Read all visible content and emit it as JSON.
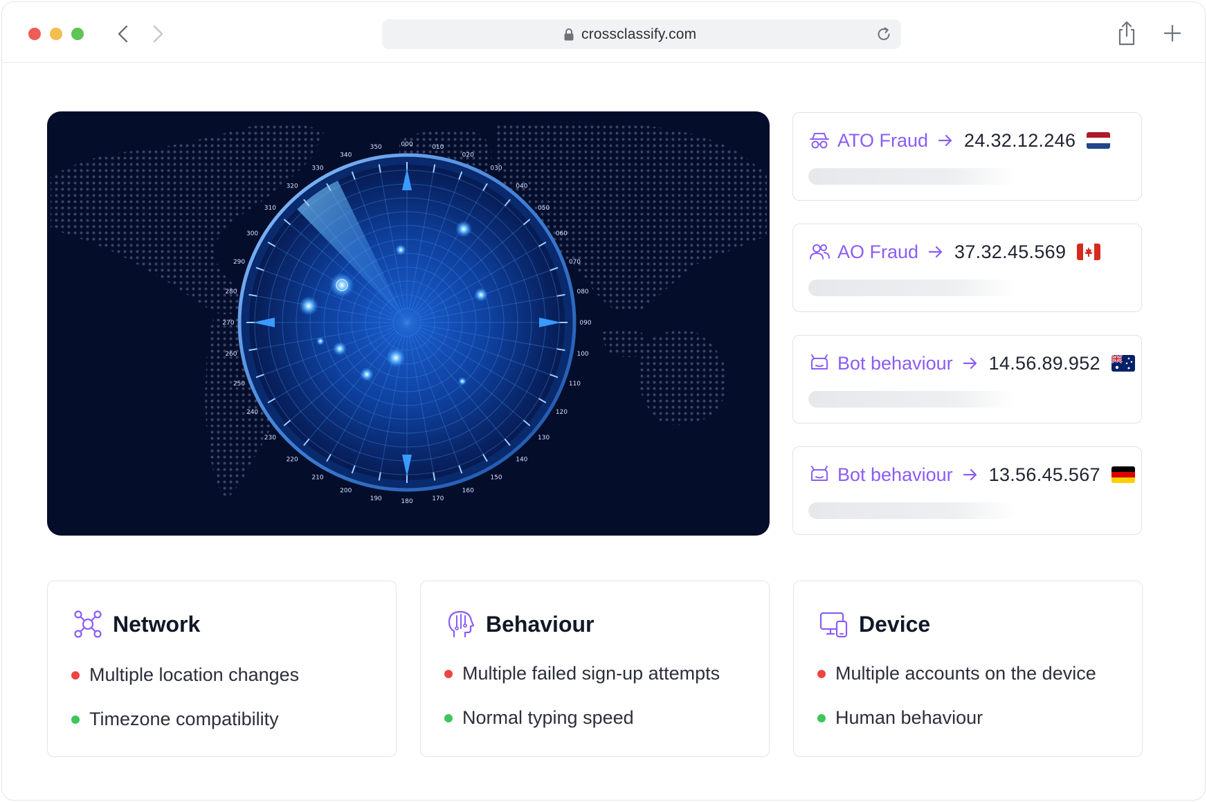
{
  "browser": {
    "url": "crossclassify.com",
    "icons": [
      "close-dot",
      "minimize-dot",
      "maximize-dot",
      "back-chevron-icon",
      "forward-chevron-icon",
      "lock-icon",
      "reload-icon",
      "share-icon",
      "plus-icon"
    ]
  },
  "radar": {
    "degree_labels": [
      "000",
      "010",
      "020",
      "030",
      "040",
      "050",
      "060",
      "070",
      "080",
      "090",
      "100",
      "110",
      "120",
      "130",
      "140",
      "150",
      "160",
      "170",
      "180",
      "190",
      "200",
      "210",
      "220",
      "230",
      "240",
      "250",
      "260",
      "270",
      "280",
      "290",
      "300",
      "310",
      "320",
      "330",
      "340",
      "350"
    ],
    "colors": {
      "background": "#040d2a",
      "accent": "#2a8cff"
    }
  },
  "alerts": [
    {
      "type": "ATO Fraud",
      "ip": "24.32.12.246",
      "icon": "incognito-icon",
      "flag": "netherlands-flag"
    },
    {
      "type": "AO Fraud",
      "ip": "37.32.45.569",
      "icon": "users-icon",
      "flag": "canada-flag"
    },
    {
      "type": "Bot behaviour",
      "ip": "14.56.89.952",
      "icon": "bot-icon",
      "flag": "australia-flag"
    },
    {
      "type": "Bot behaviour",
      "ip": "13.56.45.567",
      "icon": "bot-icon",
      "flag": "germany-flag"
    }
  ],
  "features": [
    {
      "title": "Network",
      "icon": "network-icon",
      "items": [
        {
          "text": "Multiple location changes",
          "status": "red"
        },
        {
          "text": "Timezone compatibility",
          "status": "green"
        }
      ]
    },
    {
      "title": "Behaviour",
      "icon": "brain-head-icon",
      "items": [
        {
          "text": "Multiple failed sign-up attempts",
          "status": "red"
        },
        {
          "text": "Normal typing speed",
          "status": "green"
        }
      ]
    },
    {
      "title": "Device",
      "icon": "devices-icon",
      "items": [
        {
          "text": "Multiple accounts on the device",
          "status": "red"
        },
        {
          "text": "Human behaviour",
          "status": "green"
        }
      ]
    }
  ],
  "colors": {
    "accent": "#8b5cf6",
    "danger": "#ef4444",
    "ok": "#3ec55c"
  }
}
